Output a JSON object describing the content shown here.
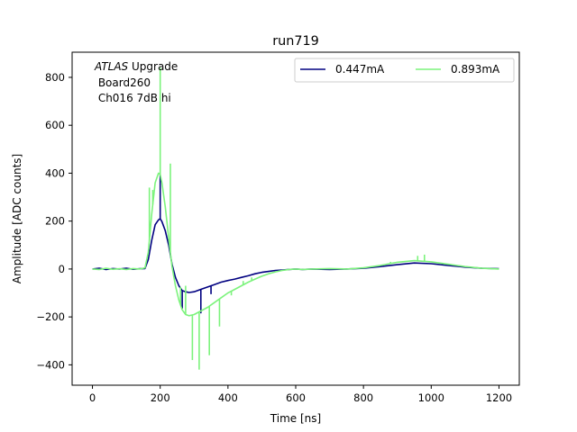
{
  "chart_data": {
    "type": "line",
    "title": "run719",
    "xlabel": "Time [ns]",
    "ylabel": "Amplitude [ADC counts]",
    "xlim": [
      -60,
      1260
    ],
    "ylim": [
      -485,
      905
    ],
    "xticks": [
      0,
      200,
      400,
      600,
      800,
      1000,
      1200
    ],
    "yticks": [
      -400,
      -200,
      0,
      200,
      400,
      600,
      800
    ],
    "annotation": {
      "italic": "ATLAS",
      "line1_rest": " Upgrade",
      "line2": " Board260",
      "line3": " Ch016 7dB hi"
    },
    "legend_position": "top-right",
    "series": [
      {
        "name": "0.447mA",
        "color": "#000080",
        "x": [
          0,
          20,
          40,
          60,
          80,
          100,
          120,
          140,
          155,
          165,
          175,
          185,
          195,
          200,
          205,
          215,
          225,
          235,
          245,
          255,
          265,
          275,
          285,
          300,
          320,
          340,
          360,
          380,
          400,
          420,
          440,
          460,
          480,
          500,
          520,
          540,
          560,
          580,
          600,
          620,
          650,
          700,
          750,
          800,
          850,
          900,
          950,
          1000,
          1050,
          1100,
          1150,
          1200
        ],
        "y": [
          0,
          3,
          -2,
          2,
          0,
          3,
          -1,
          1,
          2,
          40,
          120,
          185,
          205,
          210,
          198,
          160,
          100,
          20,
          -35,
          -70,
          -90,
          -95,
          -98,
          -95,
          -85,
          -75,
          -65,
          -55,
          -48,
          -42,
          -35,
          -28,
          -20,
          -14,
          -10,
          -6,
          -4,
          -2,
          0,
          -2,
          0,
          -2,
          0,
          3,
          10,
          18,
          25,
          22,
          15,
          8,
          3,
          1
        ],
        "spikes": [
          [
            200,
            400
          ],
          [
            265,
            -165
          ],
          [
            320,
            -185
          ],
          [
            350,
            -105
          ]
        ]
      },
      {
        "name": "0.893mA",
        "color": "#7cf37c",
        "x": [
          0,
          20,
          40,
          60,
          80,
          100,
          120,
          140,
          155,
          165,
          175,
          185,
          195,
          200,
          205,
          215,
          225,
          235,
          245,
          255,
          265,
          275,
          285,
          300,
          320,
          340,
          360,
          380,
          400,
          420,
          440,
          460,
          480,
          500,
          520,
          540,
          560,
          580,
          600,
          620,
          650,
          700,
          750,
          800,
          850,
          900,
          950,
          1000,
          1050,
          1100,
          1150,
          1200
        ],
        "y": [
          0,
          -2,
          3,
          -1,
          1,
          -2,
          2,
          0,
          5,
          70,
          230,
          360,
          400,
          395,
          360,
          260,
          130,
          10,
          -70,
          -130,
          -170,
          -190,
          -195,
          -190,
          -175,
          -160,
          -140,
          -120,
          -100,
          -85,
          -70,
          -55,
          -42,
          -30,
          -20,
          -12,
          -6,
          -2,
          0,
          -2,
          0,
          2,
          0,
          5,
          15,
          28,
          35,
          30,
          20,
          10,
          3,
          0
        ],
        "spikes": [
          [
            200,
            840
          ],
          [
            168,
            340
          ],
          [
            178,
            330
          ],
          [
            230,
            440
          ],
          [
            295,
            -380
          ],
          [
            315,
            -420
          ],
          [
            345,
            -360
          ],
          [
            375,
            -240
          ],
          [
            260,
            -75
          ],
          [
            275,
            -70
          ],
          [
            410,
            -110
          ],
          [
            445,
            -50
          ],
          [
            470,
            -35
          ],
          [
            495,
            -30
          ],
          [
            880,
            30
          ],
          [
            960,
            55
          ],
          [
            980,
            60
          ]
        ]
      }
    ]
  }
}
